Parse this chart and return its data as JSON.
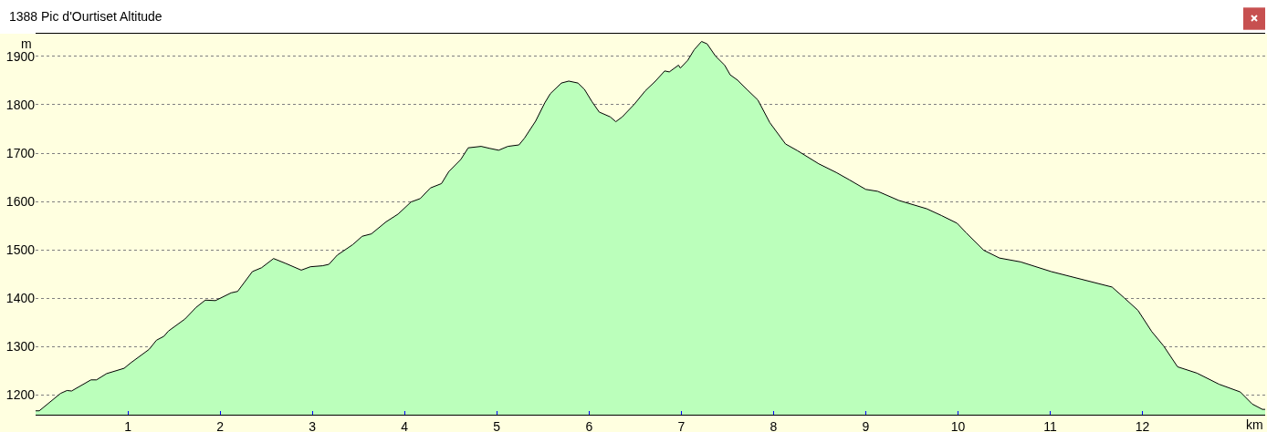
{
  "chart_data": {
    "type": "area",
    "title": "1388 Pic d'Ourtiset Altitude",
    "xlabel": "km",
    "ylabel": "m",
    "x": [
      0,
      0.04,
      0.27,
      0.34,
      0.39,
      0.6,
      0.66,
      0.77,
      0.96,
      1.03,
      1.23,
      1.31,
      1.39,
      1.44,
      1.62,
      1.74,
      1.84,
      1.95,
      2.12,
      2.19,
      2.35,
      2.45,
      2.58,
      2.71,
      2.88,
      2.98,
      3.11,
      3.18,
      3.27,
      3.44,
      3.54,
      3.64,
      3.8,
      3.93,
      4.07,
      4.17,
      4.28,
      4.4,
      4.48,
      4.61,
      4.69,
      4.83,
      4.92,
      5.02,
      5.12,
      5.24,
      5.3,
      5.42,
      5.52,
      5.58,
      5.7,
      5.78,
      5.88,
      5.95,
      6.03,
      6.11,
      6.23,
      6.29,
      6.36,
      6.49,
      6.61,
      6.72,
      6.82,
      6.87,
      6.97,
      6.99,
      7.07,
      7.14,
      7.22,
      7.28,
      7.37,
      7.47,
      7.53,
      7.61,
      7.71,
      7.83,
      7.96,
      8.13,
      8.26,
      8.49,
      8.68,
      8.82,
      9.0,
      9.13,
      9.36,
      9.66,
      9.82,
      9.99,
      10.09,
      10.28,
      10.45,
      10.68,
      11.01,
      11.34,
      11.67,
      11.8,
      11.95,
      12.1,
      12.23,
      12.38,
      12.59,
      12.83,
      13.06,
      13.19,
      13.3,
      13.33
    ],
    "values": [
      1167,
      1167,
      1203,
      1209,
      1208,
      1231,
      1231,
      1244,
      1255,
      1266,
      1294,
      1313,
      1321,
      1332,
      1357,
      1381,
      1396,
      1395,
      1411,
      1414,
      1455,
      1463,
      1482,
      1472,
      1458,
      1465,
      1467,
      1470,
      1489,
      1511,
      1528,
      1533,
      1558,
      1574,
      1599,
      1606,
      1628,
      1637,
      1662,
      1687,
      1711,
      1714,
      1710,
      1706,
      1714,
      1717,
      1731,
      1766,
      1804,
      1823,
      1845,
      1849,
      1845,
      1832,
      1807,
      1785,
      1775,
      1765,
      1775,
      1801,
      1829,
      1849,
      1870,
      1868,
      1882,
      1876,
      1892,
      1914,
      1931,
      1926,
      1901,
      1882,
      1862,
      1851,
      1832,
      1810,
      1763,
      1719,
      1705,
      1678,
      1660,
      1645,
      1625,
      1621,
      1602,
      1585,
      1571,
      1555,
      1535,
      1499,
      1483,
      1475,
      1455,
      1439,
      1423,
      1401,
      1375,
      1331,
      1301,
      1258,
      1245,
      1222,
      1206,
      1181,
      1170,
      1170
    ],
    "color": "#bbffbb",
    "xlim": [
      0,
      13.33
    ],
    "ylim": [
      1159,
      1947
    ],
    "xticks": [
      1,
      2,
      3,
      4,
      5,
      6,
      7,
      8,
      9,
      10,
      11,
      12
    ],
    "yticks": [
      1200,
      1300,
      1400,
      1500,
      1600,
      1700,
      1800,
      1900
    ],
    "grid": "y"
  }
}
